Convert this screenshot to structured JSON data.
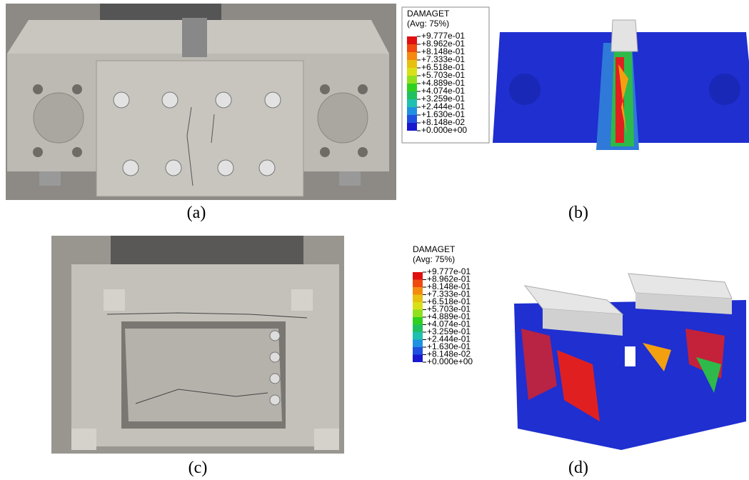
{
  "panels": [
    {
      "label": "(a)"
    },
    {
      "label": "(b)",
      "legend": {
        "title": "DAMAGET",
        "subtitle": "(Avg: 75%)",
        "levels": [
          "+9.777e-01",
          "+8.962e-01",
          "+8.148e-01",
          "+7.333e-01",
          "+6.518e-01",
          "+5.703e-01",
          "+4.889e-01",
          "+4.074e-01",
          "+3.259e-01",
          "+2.444e-01",
          "+1.630e-01",
          "+8.148e-02",
          "+0.000e+00"
        ]
      }
    },
    {
      "label": "(c)"
    },
    {
      "label": "(d)",
      "legend": {
        "title": "DAMAGET",
        "subtitle": "(Avg: 75%)",
        "levels": [
          "+9.777e-01",
          "+8.962e-01",
          "+8.148e-01",
          "+7.333e-01",
          "+6.518e-01",
          "+5.703e-01",
          "+4.889e-01",
          "+4.074e-01",
          "+3.259e-01",
          "+2.444e-01",
          "+1.630e-01",
          "+8.148e-02",
          "+0.000e+00"
        ]
      }
    }
  ]
}
